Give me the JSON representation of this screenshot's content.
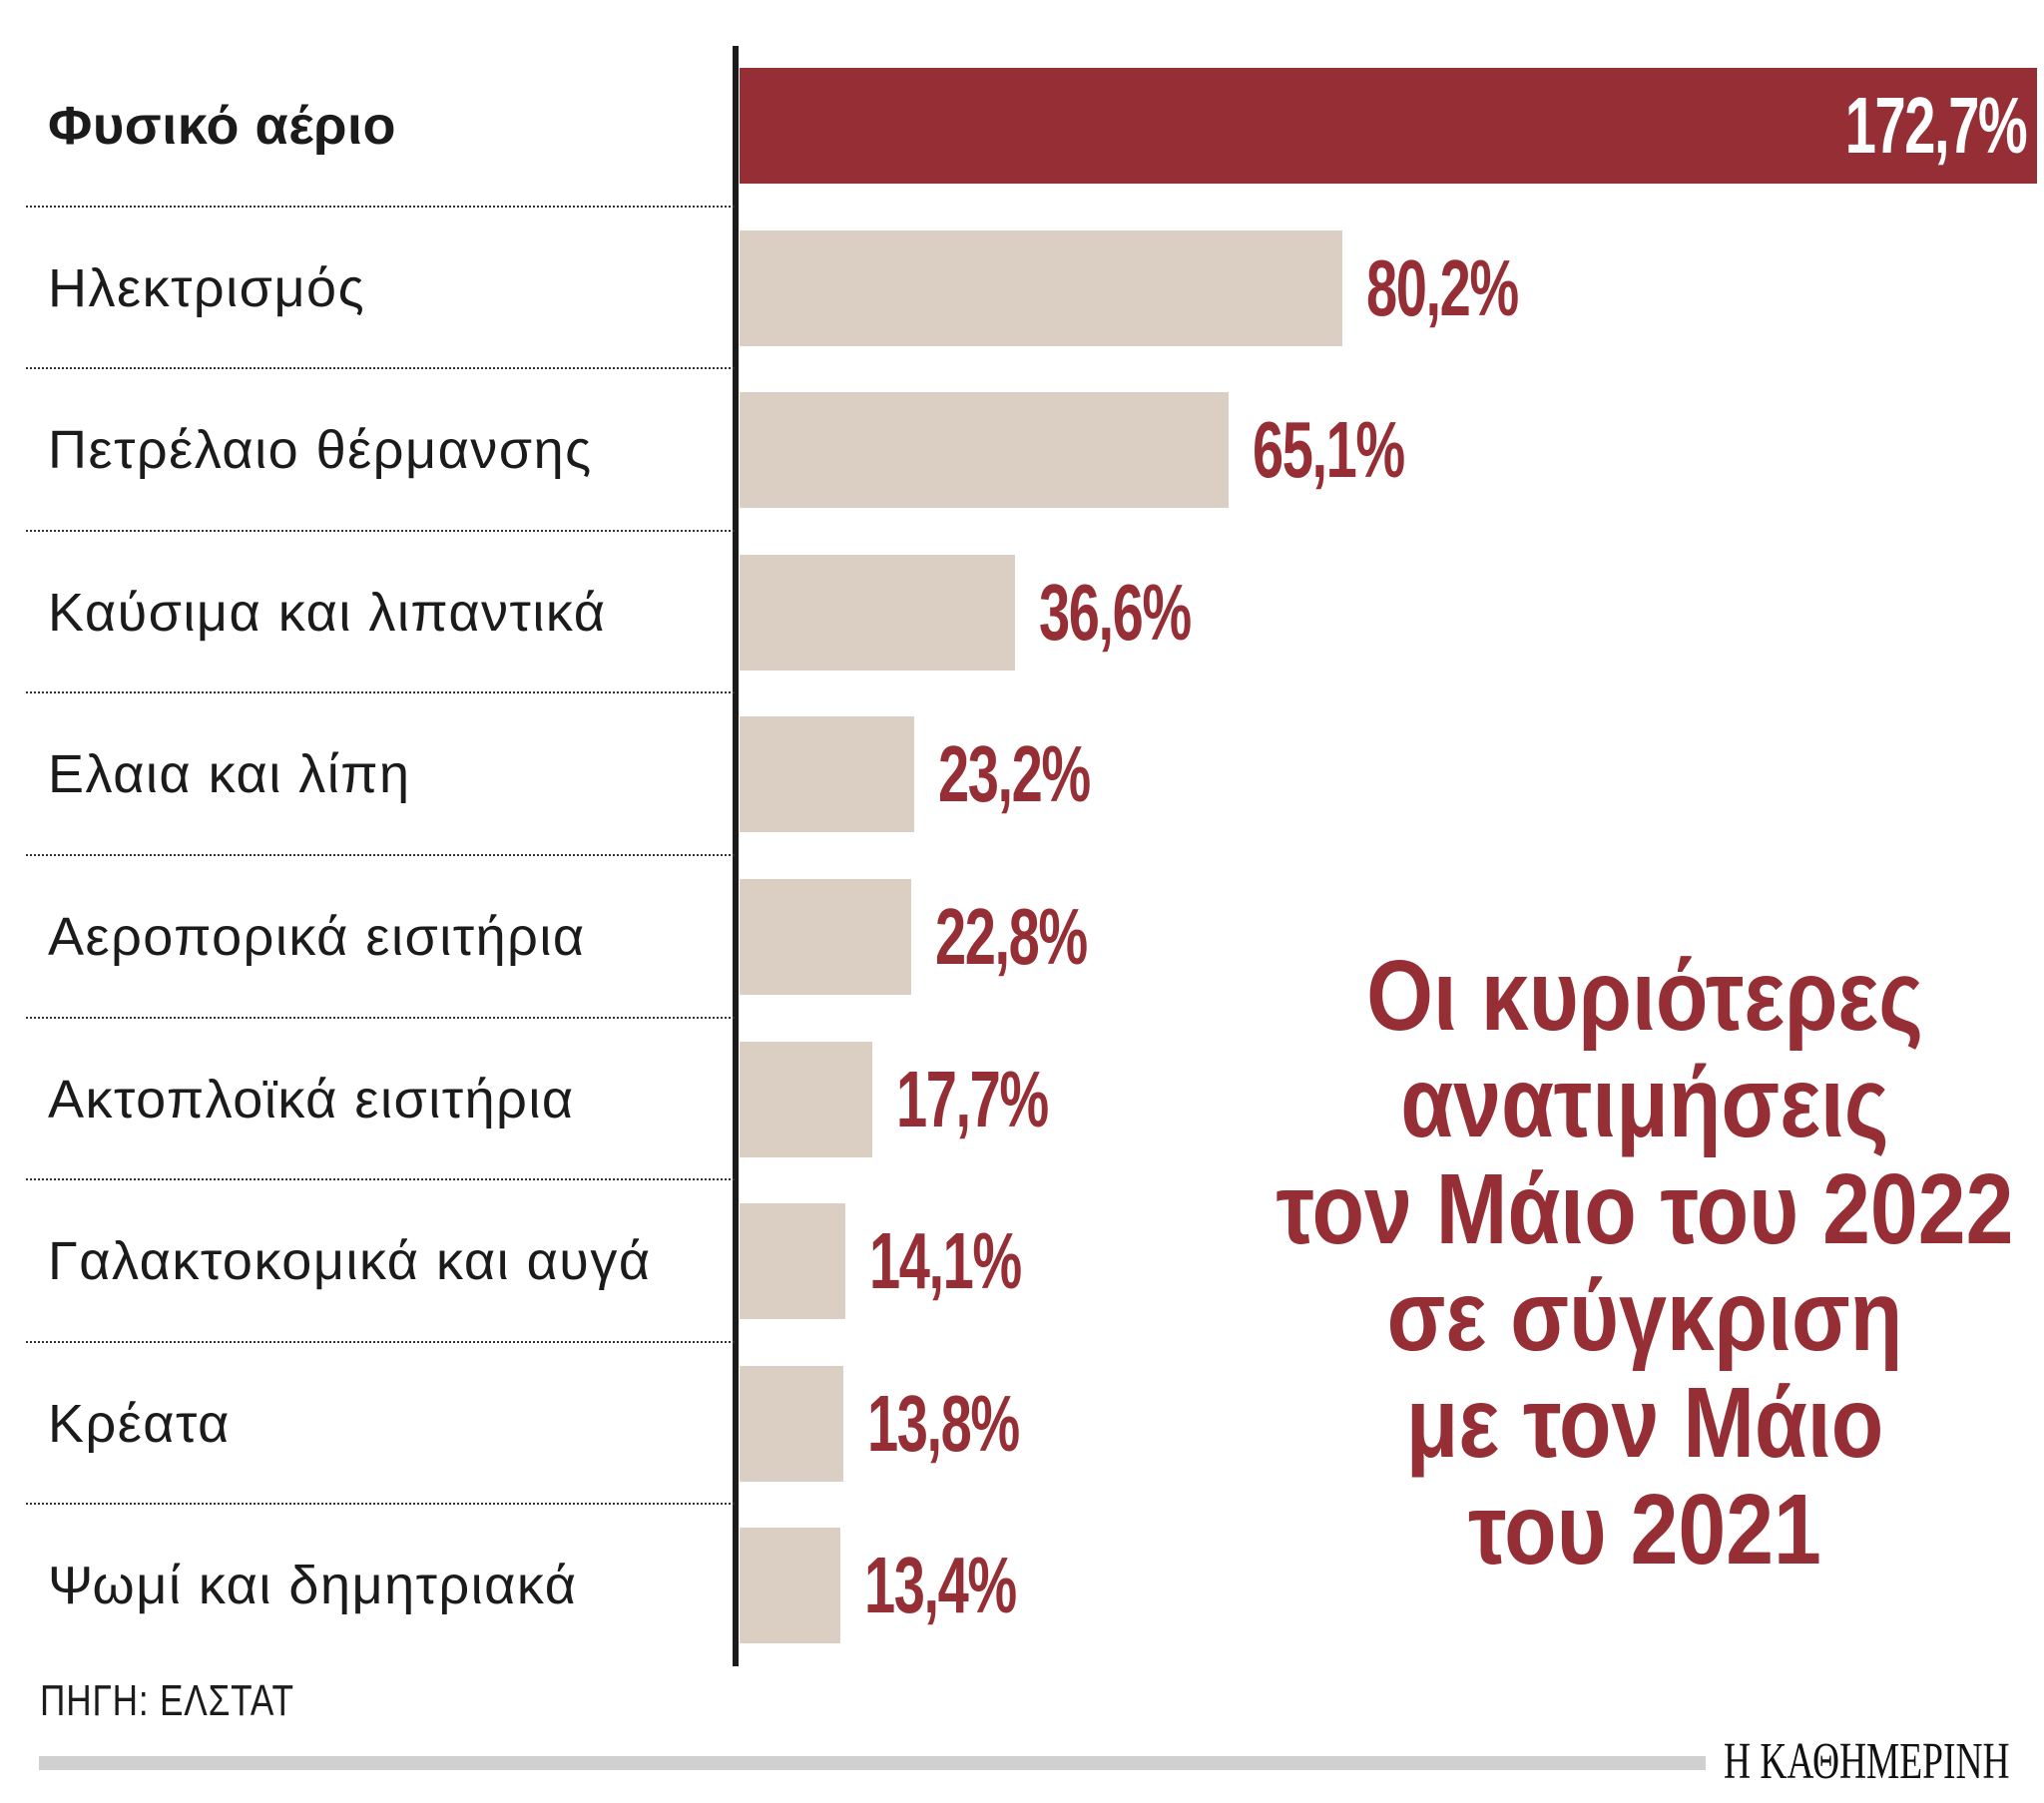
{
  "chart_data": {
    "type": "bar",
    "orientation": "horizontal",
    "title": [
      "Οι κυριότερες",
      "ανατιμήσεις",
      "τον Μάιο του 2022",
      "σε σύγκριση",
      "με τον Μάιο",
      "του 2021"
    ],
    "categories": [
      "Φυσικό αέριο",
      "Ηλεκτρισμός",
      "Πετρέλαιο θέρμανσης",
      "Καύσιμα και λιπαντικά",
      "Ελαια και λίπη",
      "Αεροπορικά εισιτήρια",
      "Ακτοπλοϊκά εισιτήρια",
      "Γαλακτοκομικά και αυγά",
      "Κρέατα",
      "Ψωμί και δημητριακά"
    ],
    "values": [
      172.7,
      80.2,
      65.1,
      36.6,
      23.2,
      22.8,
      17.7,
      14.1,
      13.8,
      13.4
    ],
    "labels": [
      "172,7%",
      "80,2%",
      "65,1%",
      "36,6%",
      "23,2%",
      "22,8%",
      "17,7%",
      "14,1%",
      "13,8%",
      "13,4%"
    ],
    "unit": "%",
    "xlim": [
      0,
      173
    ],
    "grid": false,
    "colors": {
      "highlight": "#962f35",
      "bar": "#dbcfc3",
      "label": "#962f35"
    }
  },
  "source": "ΠΗΓΗ: ΕΛΣΤΑΤ",
  "logo": "Η ΚΑΘΗΜΕΡΙΝΗ"
}
